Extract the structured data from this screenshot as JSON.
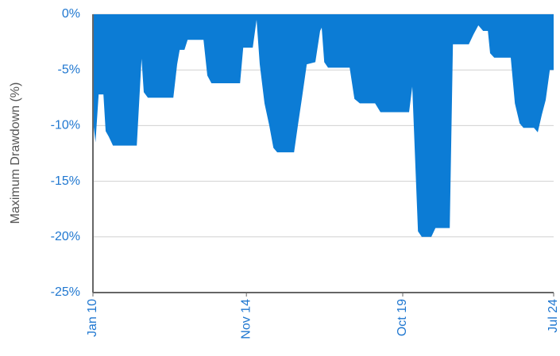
{
  "chart_data": {
    "type": "area",
    "y_label": "Maximum Drawdown (%)",
    "color": "#0c7cd5",
    "grid": true,
    "x": [
      2010.0,
      2010.08,
      2010.18,
      2010.33,
      2010.4,
      2010.5,
      2010.63,
      2011.38,
      2011.53,
      2011.6,
      2011.73,
      2012.53,
      2012.65,
      2012.73,
      2012.88,
      2012.98,
      2013.48,
      2013.6,
      2013.73,
      2014.63,
      2014.73,
      2015.03,
      2015.15,
      2015.25,
      2015.4,
      2015.55,
      2015.68,
      2015.8,
      2016.33,
      2016.45,
      2016.58,
      2016.73,
      2017.0,
      2017.15,
      2017.2,
      2017.28,
      2017.4,
      2018.08,
      2018.23,
      2018.4,
      2018.88,
      2019.05,
      2019.95,
      2020.05,
      2020.23,
      2020.35,
      2020.65,
      2020.78,
      2021.23,
      2021.33,
      2021.83,
      2021.98,
      2022.13,
      2022.28,
      2022.43,
      2022.5,
      2022.63,
      2023.15,
      2023.28,
      2023.43,
      2023.55,
      2023.88,
      2024.0,
      2024.13,
      2024.25,
      2024.38,
      2024.5
    ],
    "values": [
      -9.5,
      -11.5,
      -7.2,
      -7.2,
      -10.5,
      -11,
      -11.8,
      -11.8,
      -4,
      -7,
      -7.5,
      -7.5,
      -4.5,
      -3.2,
      -3.2,
      -2.3,
      -2.3,
      -5.5,
      -6.2,
      -6.2,
      -3,
      -3,
      -0.5,
      -4.5,
      -8,
      -10,
      -12,
      -12.4,
      -12.4,
      -10,
      -7.5,
      -4.5,
      -4.3,
      -1.5,
      -1.2,
      -4.3,
      -4.8,
      -4.8,
      -7.6,
      -8,
      -8,
      -8.8,
      -8.8,
      -6.5,
      -19.5,
      -20,
      -20,
      -19.2,
      -19.2,
      -2.7,
      -2.7,
      -1.8,
      -1,
      -1.5,
      -1.5,
      -3.5,
      -3.9,
      -3.9,
      -8,
      -9.8,
      -10.2,
      -10.2,
      -10.6,
      -9,
      -7.7,
      -5,
      -5
    ],
    "xlim": [
      2010,
      2024.5
    ],
    "xticks": [
      {
        "value": 2010,
        "label": "Jan 10"
      },
      {
        "value": 2014.83,
        "label": "Nov 14"
      },
      {
        "value": 2019.75,
        "label": "Oct 19"
      },
      {
        "value": 2024.5,
        "label": "Jul 24"
      }
    ],
    "ylim": [
      -25,
      0
    ],
    "yticks": [
      {
        "value": 0,
        "label": "0%"
      },
      {
        "value": -5,
        "label": "-5%"
      },
      {
        "value": -10,
        "label": "-10%"
      },
      {
        "value": -15,
        "label": "-15%"
      },
      {
        "value": -20,
        "label": "-20%"
      },
      {
        "value": -25,
        "label": "-25%"
      }
    ]
  }
}
